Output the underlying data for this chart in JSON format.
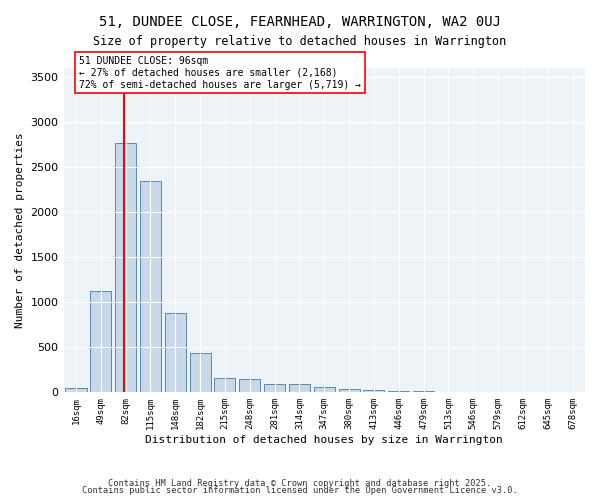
{
  "title_line1": "51, DUNDEE CLOSE, FEARNHEAD, WARRINGTON, WA2 0UJ",
  "title_line2": "Size of property relative to detached houses in Warrington",
  "xlabel": "Distribution of detached houses by size in Warrington",
  "ylabel": "Number of detached properties",
  "bar_color": "#c8d8e8",
  "bar_edge_color": "#5a8ab0",
  "background_color": "#eef3f8",
  "grid_color": "#ffffff",
  "bin_labels": [
    "16sqm",
    "49sqm",
    "82sqm",
    "115sqm",
    "148sqm",
    "182sqm",
    "215sqm",
    "248sqm",
    "281sqm",
    "314sqm",
    "347sqm",
    "380sqm",
    "413sqm",
    "446sqm",
    "479sqm",
    "513sqm",
    "546sqm",
    "579sqm",
    "612sqm",
    "645sqm",
    "678sqm"
  ],
  "bar_values": [
    50,
    1120,
    2760,
    2340,
    880,
    440,
    160,
    150,
    90,
    90,
    55,
    40,
    25,
    15,
    10,
    5,
    5,
    3,
    2,
    2,
    2
  ],
  "ylim": [
    0,
    3600
  ],
  "yticks": [
    0,
    500,
    1000,
    1500,
    2000,
    2500,
    3000,
    3500
  ],
  "property_size": 96,
  "property_label": "51 DUNDEE CLOSE: 96sqm",
  "annotation_line1": "← 27% of detached houses are smaller (2,168)",
  "annotation_line2": "72% of semi-detached houses are larger (5,719) →",
  "red_line_x": 2,
  "footnote1": "Contains HM Land Registry data © Crown copyright and database right 2025.",
  "footnote2": "Contains public sector information licensed under the Open Government Licence v3.0."
}
